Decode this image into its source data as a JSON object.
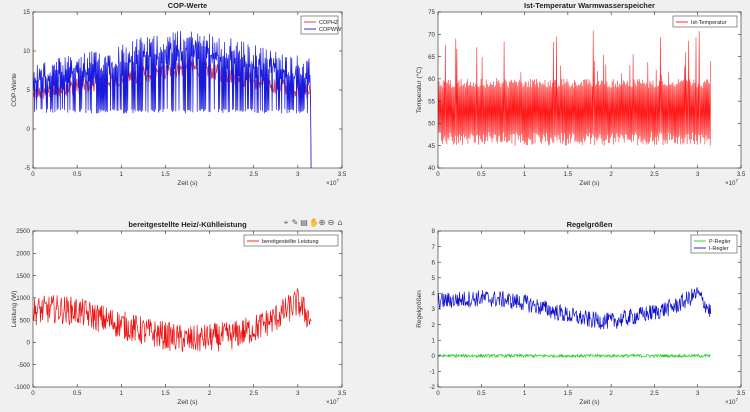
{
  "toolbar": {
    "icons": [
      "data-cursor-icon",
      "brush-icon",
      "colorbar-icon",
      "pan-icon",
      "zoom-in-icon",
      "zoom-out-icon",
      "home-icon"
    ],
    "glyphs": [
      "⌖",
      "✎",
      "▤",
      "✋",
      "⊕",
      "⊖",
      "⌂"
    ]
  },
  "chart_data": [
    {
      "type": "line",
      "title": "COP-Werte",
      "xlabel": "Zeit (s)",
      "ylabel": "COP-Werte",
      "xlim": [
        0,
        3.5
      ],
      "ylim": [
        -5,
        15
      ],
      "x_ticks": [
        "0",
        "0.5",
        "1",
        "1.5",
        "2",
        "2.5",
        "3",
        "3.5"
      ],
      "y_ticks": [
        "-5",
        "0",
        "5",
        "10",
        "15"
      ],
      "x_exponent": "×10",
      "x_exponent_power": "7",
      "legend_position": "top-right",
      "series": [
        {
          "name": "COPHZ",
          "color": "#e03030",
          "x": [
            0,
            0.25,
            0.5,
            0.75,
            1,
            1.25,
            1.5,
            1.75,
            2,
            2.25,
            2.5,
            2.75,
            3,
            3.15
          ],
          "values": [
            4.5,
            5,
            5.5,
            6,
            6.5,
            7,
            7.3,
            7.8,
            7.5,
            6.8,
            6.2,
            5.6,
            5,
            4.8
          ]
        },
        {
          "name": "COPWW",
          "color": "#1a1adf",
          "x": [
            0,
            0.25,
            0.5,
            0.75,
            1,
            1.25,
            1.5,
            1.75,
            2,
            2.25,
            2.5,
            2.75,
            3,
            3.15
          ],
          "values": [
            6.5,
            7,
            7.5,
            8.2,
            9,
            9.8,
            10.3,
            10.7,
            10.4,
            9.6,
            8.8,
            8,
            7.5,
            7.2
          ]
        }
      ]
    },
    {
      "type": "line",
      "title": "Ist-Temperatur Warmwasserspeicher",
      "xlabel": "Zeit (s)",
      "ylabel": "Temperatur (°C)",
      "xlim": [
        0,
        3.5
      ],
      "ylim": [
        40,
        75
      ],
      "x_ticks": [
        "0",
        "0.5",
        "1",
        "1.5",
        "2",
        "2.5",
        "3",
        "3.5"
      ],
      "y_ticks": [
        "40",
        "45",
        "50",
        "55",
        "60",
        "65",
        "70",
        "75"
      ],
      "x_exponent": "×10",
      "x_exponent_power": "7",
      "legend_position": "top-right",
      "series": [
        {
          "name": "Ist-Temperatur",
          "color": "#ff1a1a",
          "x": [
            0,
            3.15
          ],
          "values_range": [
            45,
            60
          ],
          "peak": 71
        }
      ]
    },
    {
      "type": "line",
      "title": "bereitgestellte Heiz/-Kühlleistung",
      "xlabel": "Zeit (s)",
      "ylabel": "Leistung (W)",
      "xlim": [
        0,
        3.5
      ],
      "ylim": [
        -1000,
        2500
      ],
      "x_ticks": [
        "0",
        "0.5",
        "1",
        "1.5",
        "2",
        "2.5",
        "3",
        "3.5"
      ],
      "y_ticks": [
        "-1000",
        "-500",
        "0",
        "500",
        "1000",
        "1500",
        "2000",
        "2500"
      ],
      "x_exponent": "×10",
      "x_exponent_power": "7",
      "legend_position": "top-right",
      "series": [
        {
          "name": "bereitgestellte Leistung",
          "color": "#ee1010",
          "x": [
            0,
            0.25,
            0.5,
            0.75,
            1,
            1.25,
            1.5,
            1.75,
            2,
            2.25,
            2.5,
            2.75,
            3,
            3.15
          ],
          "values": [
            700,
            750,
            700,
            550,
            400,
            250,
            150,
            50,
            100,
            150,
            300,
            550,
            900,
            500
          ]
        }
      ]
    },
    {
      "type": "line",
      "title": "Regelgrößen",
      "xlabel": "Zeit (s)",
      "ylabel": "Regelgrößen",
      "xlim": [
        0,
        3.5
      ],
      "ylim": [
        -2,
        8
      ],
      "x_ticks": [
        "0",
        "0.5",
        "1",
        "1.5",
        "2",
        "2.5",
        "3",
        "3.5"
      ],
      "y_ticks": [
        "-2",
        "-1",
        "0",
        "1",
        "2",
        "3",
        "4",
        "5",
        "6",
        "7",
        "8"
      ],
      "x_exponent": "×10",
      "x_exponent_power": "7",
      "legend_position": "top-right",
      "series": [
        {
          "name": "P-Regler",
          "color": "#22cc22",
          "x": [
            0,
            3.15
          ],
          "values": [
            0,
            0
          ]
        },
        {
          "name": "I-Regler",
          "color": "#1010cc",
          "x": [
            0,
            0.25,
            0.5,
            0.75,
            1,
            1.25,
            1.5,
            1.75,
            2,
            2.25,
            2.5,
            2.75,
            3,
            3.15
          ],
          "values": [
            3.5,
            3.6,
            3.7,
            3.6,
            3.4,
            3,
            2.6,
            2.3,
            2.2,
            2.5,
            2.8,
            3.2,
            4,
            2.8
          ]
        }
      ]
    }
  ]
}
